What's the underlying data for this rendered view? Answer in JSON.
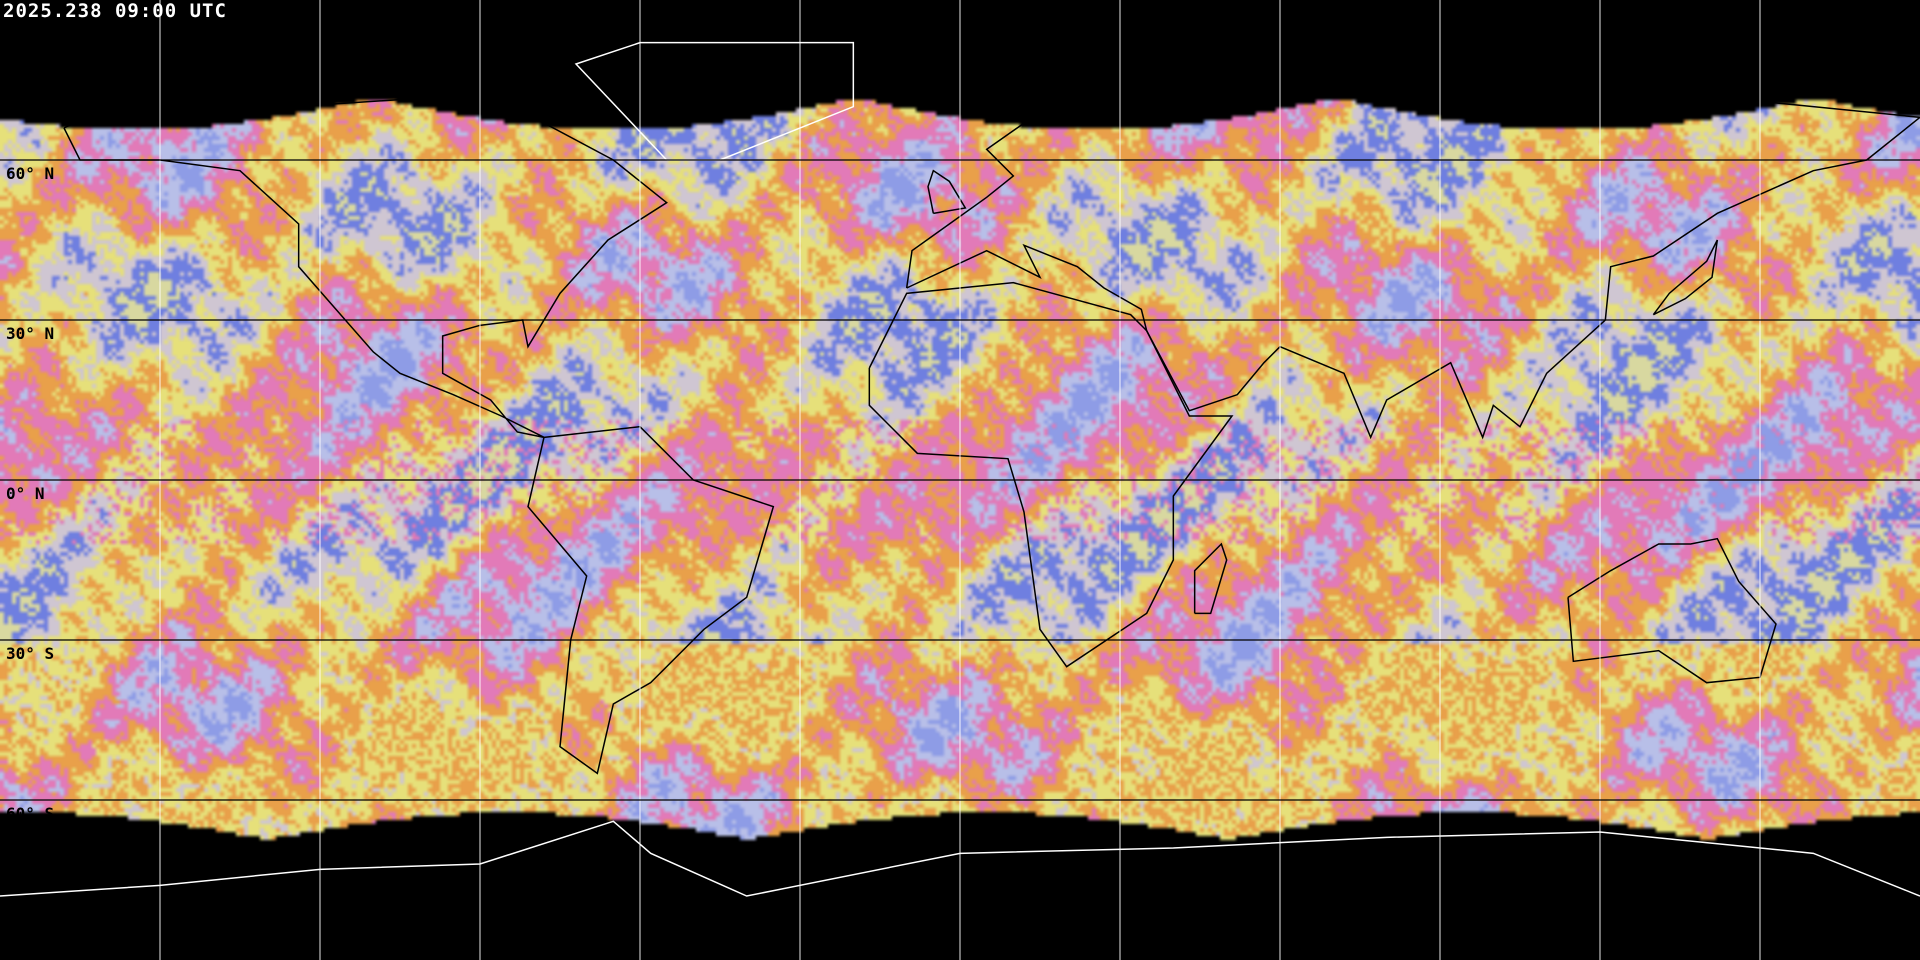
{
  "header": {
    "title": "2025.238 09:00 UTC"
  },
  "map": {
    "projection": "equirectangular",
    "graticule_spacing_deg": 30,
    "latitude_labels": [
      "60° N",
      "30° N",
      "0° N",
      "30° S",
      "60° S"
    ],
    "colors": {
      "background": "#000000",
      "graticule_over_image": "#000000",
      "graticule_over_space": "#ffffff",
      "coastline_over_image": "#000000",
      "coastline_over_space": "#ffffff",
      "imagery_palette": [
        "#8e9ce6",
        "#b8bfe8",
        "#e27ab8",
        "#e9a04a",
        "#e6e07a",
        "#cfc6d2",
        "#6f7fe0",
        "#d8d8a0"
      ]
    }
  }
}
